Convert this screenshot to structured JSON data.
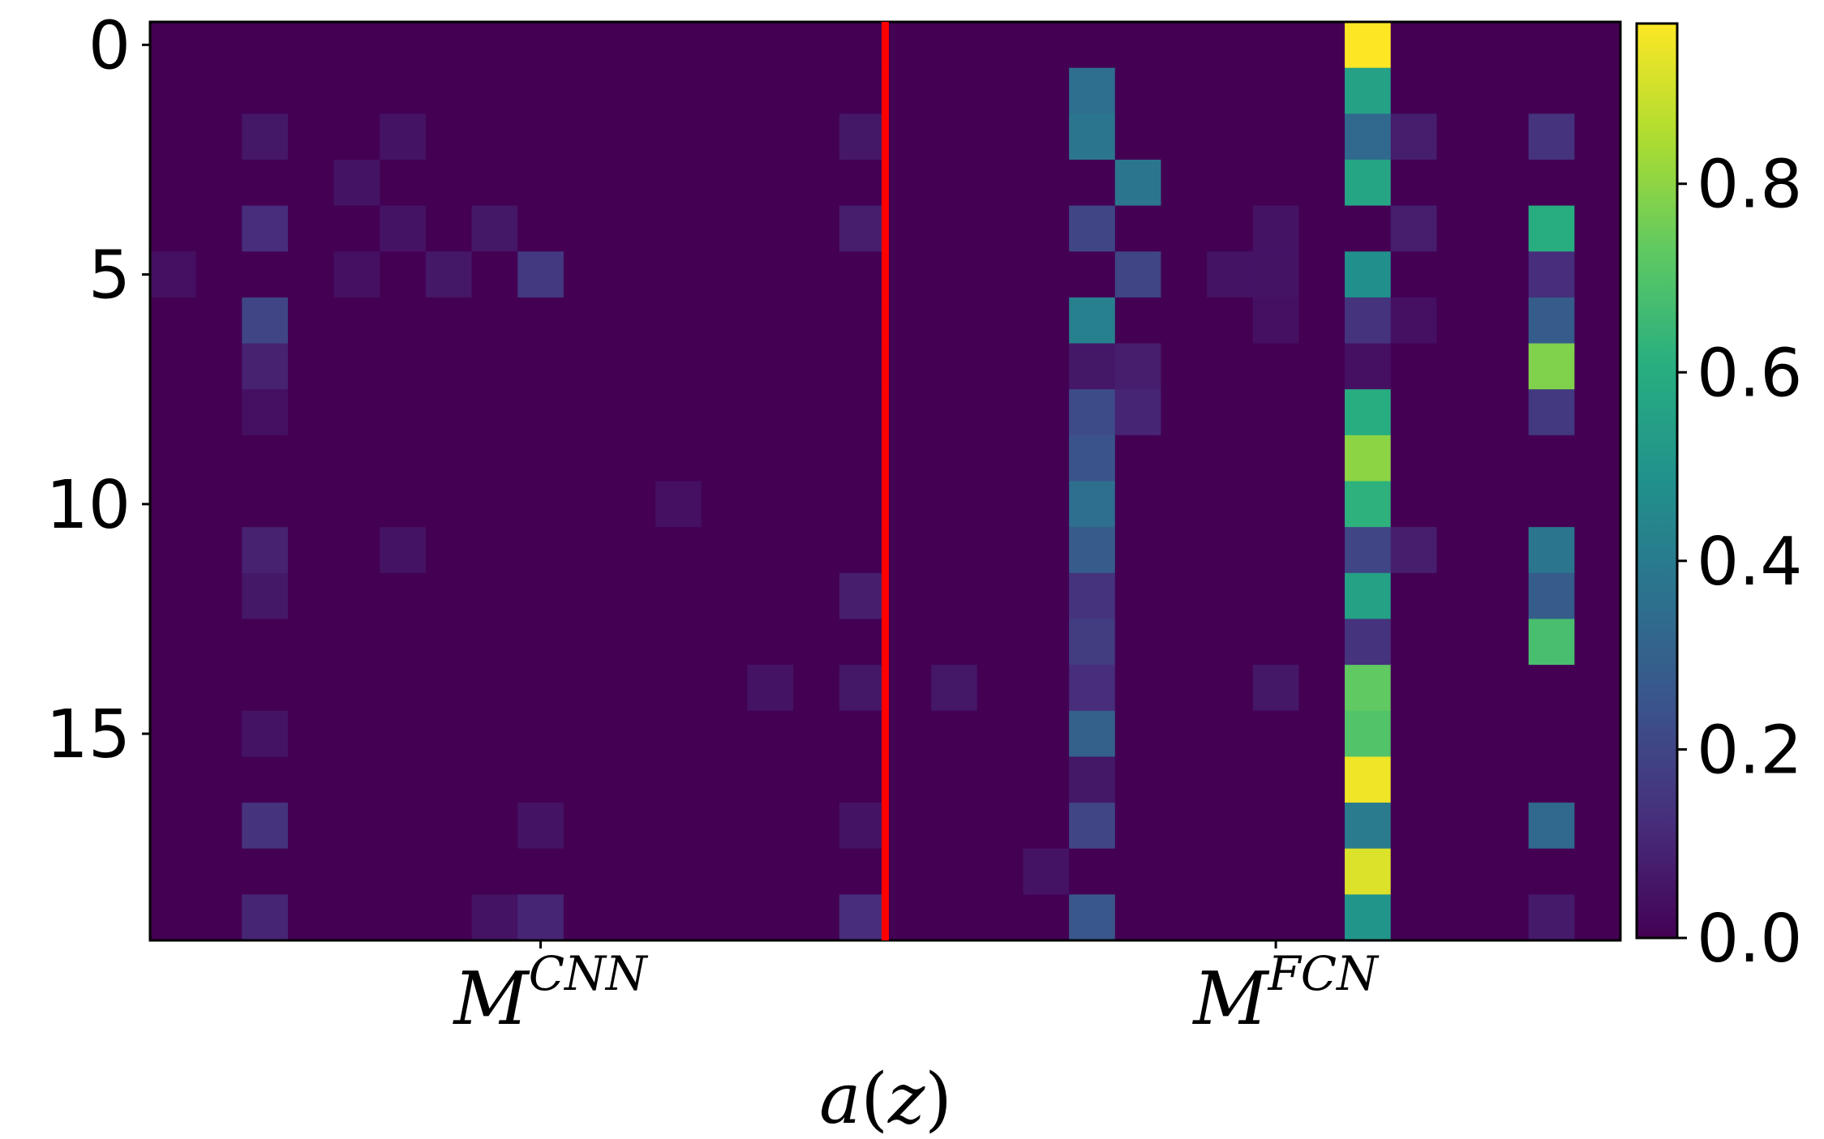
{
  "chart_data": {
    "type": "heatmap",
    "colormap": "viridis",
    "rows": 20,
    "cols": 32,
    "xlabel_base": "a",
    "xlabel_arg": "z",
    "x_ticks": [
      {
        "base": "M",
        "sup": "CNN",
        "col": 8
      },
      {
        "base": "M",
        "sup": "FCN",
        "col": 24
      }
    ],
    "y_ticks": [
      0,
      5,
      10,
      15
    ],
    "divider_col": 16,
    "divider_color": "#ff0000",
    "colorbar": {
      "vmin": 0.0,
      "vmax": 0.97,
      "ticks": [
        "0.0",
        "0.2",
        "0.4",
        "0.6",
        "0.8"
      ]
    },
    "cells": [
      {
        "r": 0,
        "c": 26,
        "v": 0.97
      },
      {
        "r": 1,
        "c": 20,
        "v": 0.35
      },
      {
        "r": 1,
        "c": 26,
        "v": 0.55
      },
      {
        "r": 2,
        "c": 2,
        "v": 0.06
      },
      {
        "r": 2,
        "c": 5,
        "v": 0.05
      },
      {
        "r": 2,
        "c": 15,
        "v": 0.06
      },
      {
        "r": 2,
        "c": 20,
        "v": 0.38
      },
      {
        "r": 2,
        "c": 26,
        "v": 0.33
      },
      {
        "r": 2,
        "c": 27,
        "v": 0.08
      },
      {
        "r": 2,
        "c": 30,
        "v": 0.14
      },
      {
        "r": 3,
        "c": 4,
        "v": 0.05
      },
      {
        "r": 3,
        "c": 21,
        "v": 0.38
      },
      {
        "r": 3,
        "c": 26,
        "v": 0.57
      },
      {
        "r": 4,
        "c": 2,
        "v": 0.12
      },
      {
        "r": 4,
        "c": 5,
        "v": 0.05
      },
      {
        "r": 4,
        "c": 7,
        "v": 0.06
      },
      {
        "r": 4,
        "c": 15,
        "v": 0.08
      },
      {
        "r": 4,
        "c": 20,
        "v": 0.2
      },
      {
        "r": 4,
        "c": 24,
        "v": 0.05
      },
      {
        "r": 4,
        "c": 27,
        "v": 0.08
      },
      {
        "r": 4,
        "c": 30,
        "v": 0.6
      },
      {
        "r": 5,
        "c": 0,
        "v": 0.04
      },
      {
        "r": 5,
        "c": 4,
        "v": 0.04
      },
      {
        "r": 5,
        "c": 6,
        "v": 0.06
      },
      {
        "r": 5,
        "c": 8,
        "v": 0.16
      },
      {
        "r": 5,
        "c": 21,
        "v": 0.2
      },
      {
        "r": 5,
        "c": 23,
        "v": 0.05
      },
      {
        "r": 5,
        "c": 24,
        "v": 0.05
      },
      {
        "r": 5,
        "c": 26,
        "v": 0.48
      },
      {
        "r": 5,
        "c": 30,
        "v": 0.12
      },
      {
        "r": 6,
        "c": 2,
        "v": 0.2
      },
      {
        "r": 6,
        "c": 20,
        "v": 0.42
      },
      {
        "r": 6,
        "c": 24,
        "v": 0.04
      },
      {
        "r": 6,
        "c": 26,
        "v": 0.14
      },
      {
        "r": 6,
        "c": 27,
        "v": 0.04
      },
      {
        "r": 6,
        "c": 30,
        "v": 0.28
      },
      {
        "r": 7,
        "c": 2,
        "v": 0.09
      },
      {
        "r": 7,
        "c": 20,
        "v": 0.06
      },
      {
        "r": 7,
        "c": 21,
        "v": 0.08
      },
      {
        "r": 7,
        "c": 26,
        "v": 0.04
      },
      {
        "r": 7,
        "c": 30,
        "v": 0.78
      },
      {
        "r": 8,
        "c": 2,
        "v": 0.04
      },
      {
        "r": 8,
        "c": 20,
        "v": 0.22
      },
      {
        "r": 8,
        "c": 21,
        "v": 0.1
      },
      {
        "r": 8,
        "c": 26,
        "v": 0.6
      },
      {
        "r": 8,
        "c": 30,
        "v": 0.16
      },
      {
        "r": 9,
        "c": 20,
        "v": 0.25
      },
      {
        "r": 9,
        "c": 26,
        "v": 0.8
      },
      {
        "r": 10,
        "c": 11,
        "v": 0.04
      },
      {
        "r": 10,
        "c": 20,
        "v": 0.35
      },
      {
        "r": 10,
        "c": 26,
        "v": 0.62
      },
      {
        "r": 11,
        "c": 2,
        "v": 0.09
      },
      {
        "r": 11,
        "c": 5,
        "v": 0.05
      },
      {
        "r": 11,
        "c": 20,
        "v": 0.28
      },
      {
        "r": 11,
        "c": 26,
        "v": 0.2
      },
      {
        "r": 11,
        "c": 27,
        "v": 0.08
      },
      {
        "r": 11,
        "c": 30,
        "v": 0.38
      },
      {
        "r": 12,
        "c": 2,
        "v": 0.06
      },
      {
        "r": 12,
        "c": 15,
        "v": 0.08
      },
      {
        "r": 12,
        "c": 20,
        "v": 0.14
      },
      {
        "r": 12,
        "c": 26,
        "v": 0.55
      },
      {
        "r": 12,
        "c": 30,
        "v": 0.28
      },
      {
        "r": 13,
        "c": 20,
        "v": 0.17
      },
      {
        "r": 13,
        "c": 26,
        "v": 0.14
      },
      {
        "r": 13,
        "c": 30,
        "v": 0.68
      },
      {
        "r": 14,
        "c": 13,
        "v": 0.05
      },
      {
        "r": 14,
        "c": 15,
        "v": 0.06
      },
      {
        "r": 14,
        "c": 17,
        "v": 0.06
      },
      {
        "r": 14,
        "c": 20,
        "v": 0.12
      },
      {
        "r": 14,
        "c": 24,
        "v": 0.06
      },
      {
        "r": 14,
        "c": 26,
        "v": 0.73
      },
      {
        "r": 15,
        "c": 2,
        "v": 0.05
      },
      {
        "r": 15,
        "c": 20,
        "v": 0.3
      },
      {
        "r": 15,
        "c": 26,
        "v": 0.7
      },
      {
        "r": 16,
        "c": 20,
        "v": 0.06
      },
      {
        "r": 16,
        "c": 26,
        "v": 0.95
      },
      {
        "r": 17,
        "c": 2,
        "v": 0.14
      },
      {
        "r": 17,
        "c": 8,
        "v": 0.05
      },
      {
        "r": 17,
        "c": 15,
        "v": 0.05
      },
      {
        "r": 17,
        "c": 20,
        "v": 0.2
      },
      {
        "r": 17,
        "c": 26,
        "v": 0.4
      },
      {
        "r": 17,
        "c": 30,
        "v": 0.33
      },
      {
        "r": 18,
        "c": 19,
        "v": 0.05
      },
      {
        "r": 18,
        "c": 26,
        "v": 0.92
      },
      {
        "r": 19,
        "c": 2,
        "v": 0.1
      },
      {
        "r": 19,
        "c": 7,
        "v": 0.05
      },
      {
        "r": 19,
        "c": 8,
        "v": 0.1
      },
      {
        "r": 19,
        "c": 15,
        "v": 0.12
      },
      {
        "r": 19,
        "c": 20,
        "v": 0.26
      },
      {
        "r": 19,
        "c": 26,
        "v": 0.5
      },
      {
        "r": 19,
        "c": 30,
        "v": 0.07
      }
    ]
  }
}
